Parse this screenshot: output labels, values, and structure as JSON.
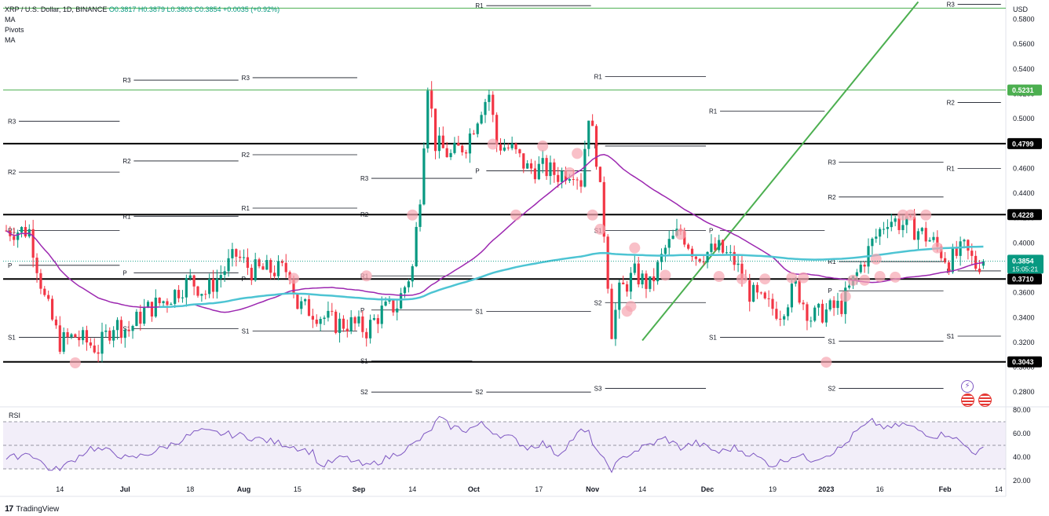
{
  "header": {
    "symbol": "XRP / U.S. Dollar, 1D, BINANCE",
    "ohlc": "O0.3817  H0.3879  L0.3803  C0.3854  +0.0035 (+0.92%)",
    "indicators": [
      "MA",
      "Pivots",
      "MA"
    ]
  },
  "currency": "USD",
  "rsi_label": "RSI",
  "logo_text": "TradingView",
  "colors": {
    "up": "#089981",
    "down": "#f23645",
    "ma_fast": "#9c27b0",
    "ma_slow": "#4dc4d3",
    "trend": "#4caf50",
    "rsi": "#7e57c2",
    "marker": "#f7a5b1"
  },
  "icons": [
    "lightning-icon",
    "flag-us-icon",
    "flag-us-icon"
  ],
  "chart_data": {
    "type": "candlestick",
    "price_axis": {
      "ylim": [
        0.27,
        0.593
      ],
      "ticks": [
        0.28,
        0.3,
        0.32,
        0.34,
        0.36,
        0.38,
        0.4,
        0.42,
        0.44,
        0.46,
        0.48,
        0.5,
        0.52,
        0.54,
        0.56,
        0.58
      ],
      "tick_labels": [
        "0.2800",
        "0.3000",
        "0.3200",
        "0.3400",
        "0.3600",
        "0.3800",
        "0.4000",
        "0.4200",
        "0.4400",
        "0.4600",
        "0.4800",
        "0.5000",
        "0.5200",
        "0.5400",
        "0.5600",
        "0.5800"
      ]
    },
    "time_axis": {
      "labels": [
        "14",
        "Jul",
        "18",
        "Aug",
        "15",
        "Sep",
        "14",
        "Oct",
        "17",
        "Nov",
        "14",
        "Dec",
        "19",
        "2023",
        "16",
        "Feb",
        "14"
      ],
      "label_days": [
        14,
        31,
        48,
        62,
        76,
        92,
        106,
        122,
        139,
        153,
        166,
        183,
        200,
        214,
        228,
        245,
        259
      ]
    },
    "start_date": "2022-05-31",
    "highlighted_prices": [
      {
        "value": 0.5231,
        "label": "0.5231",
        "color": "#4caf50"
      },
      {
        "value": 0.4799,
        "label": "0.4799",
        "color": "#000000"
      },
      {
        "value": 0.4228,
        "label": "0.4228",
        "color": "#000000"
      },
      {
        "value": 0.371,
        "label": "0.3710",
        "color": "#000000"
      },
      {
        "value": 0.3043,
        "label": "0.3043",
        "color": "#000000"
      }
    ],
    "current_price": {
      "value": 0.3854,
      "label": "0.3854",
      "countdown": "15:05:21"
    },
    "horizontal_levels": [
      {
        "value": 0.371,
        "kind": "support"
      },
      {
        "value": 0.3043,
        "kind": "support"
      },
      {
        "value": 0.4228,
        "kind": "resistance"
      },
      {
        "value": 0.4799,
        "kind": "resistance"
      },
      {
        "value": 0.5231,
        "kind": "resistance"
      },
      {
        "value": 0.589,
        "kind": "resistance"
      }
    ],
    "trend_line": {
      "from": {
        "day": 166,
        "price": 0.3215
      },
      "to": {
        "day": 238,
        "price": 0.594
      }
    },
    "pivot_sets": [
      {
        "d0": 0,
        "d1": 30,
        "levels": {
          "R3": 0.498,
          "R2": 0.457,
          "R1": 0.41,
          "P": 0.382,
          "S1": 0.324
        }
      },
      {
        "d0": 30,
        "d1": 61,
        "levels": {
          "R3": 0.531,
          "R2": 0.466,
          "R1": 0.4215,
          "P": 0.376,
          "S1": 0.331
        }
      },
      {
        "d0": 61,
        "d1": 92,
        "levels": {
          "R3": 0.533,
          "R2": 0.471,
          "R1": 0.428,
          "P": 0.371,
          "S1": 0.329
        }
      },
      {
        "d0": 92,
        "d1": 122,
        "levels": {
          "R3": 0.452,
          "R2": 0.423,
          "R1": 0.3735,
          "P": 0.346,
          "S1": 0.305,
          "S2": 0.28
        }
      },
      {
        "d0": 122,
        "d1": 153,
        "levels": {
          "R1": 0.591,
          "P": 0.458,
          "S1": 0.345,
          "S2": 0.28
        }
      },
      {
        "d0": 153,
        "d1": 183,
        "levels": {
          "R1": 0.534,
          "P": 0.478,
          "S1": 0.41,
          "S2": 0.352,
          "S3": 0.283
        }
      },
      {
        "d0": 183,
        "d1": 214,
        "levels": {
          "R1": 0.506,
          "P": 0.41,
          "S1": 0.324
        }
      },
      {
        "d0": 214,
        "d1": 245,
        "levels": {
          "R3": 0.465,
          "R2": 0.437,
          "R1": 0.385,
          "P": 0.3615,
          "S1": 0.321,
          "S2": 0.283
        }
      },
      {
        "d0": 245,
        "d1": 260,
        "levels": {
          "R3": 0.592,
          "R2": 0.513,
          "R1": 0.46,
          "P": 0.3775,
          "S1": 0.325
        }
      }
    ],
    "rsi": {
      "ylim": [
        20,
        80
      ],
      "ticks": [
        20,
        40,
        60,
        80
      ],
      "tick_labels": [
        "20.00",
        "40.00",
        "60.00",
        "80.00"
      ],
      "band": [
        30,
        70
      ],
      "mid": 50,
      "keypoints": [
        [
          0,
          38
        ],
        [
          6,
          44
        ],
        [
          12,
          28
        ],
        [
          16,
          34
        ],
        [
          22,
          48
        ],
        [
          28,
          44
        ],
        [
          32,
          38
        ],
        [
          38,
          44
        ],
        [
          44,
          52
        ],
        [
          50,
          62
        ],
        [
          56,
          60
        ],
        [
          62,
          58
        ],
        [
          68,
          54
        ],
        [
          74,
          50
        ],
        [
          80,
          44
        ],
        [
          82,
          32
        ],
        [
          88,
          40
        ],
        [
          94,
          32
        ],
        [
          100,
          40
        ],
        [
          106,
          50
        ],
        [
          110,
          60
        ],
        [
          113,
          73
        ],
        [
          116,
          66
        ],
        [
          120,
          63
        ],
        [
          124,
          68
        ],
        [
          128,
          60
        ],
        [
          132,
          56
        ],
        [
          136,
          48
        ],
        [
          140,
          52
        ],
        [
          144,
          42
        ],
        [
          148,
          56
        ],
        [
          150,
          62
        ],
        [
          152,
          60
        ],
        [
          155,
          40
        ],
        [
          158,
          30
        ],
        [
          162,
          42
        ],
        [
          166,
          48
        ],
        [
          172,
          56
        ],
        [
          176,
          48
        ],
        [
          180,
          52
        ],
        [
          186,
          44
        ],
        [
          190,
          48
        ],
        [
          196,
          40
        ],
        [
          200,
          33
        ],
        [
          206,
          42
        ],
        [
          210,
          38
        ],
        [
          214,
          42
        ],
        [
          218,
          48
        ],
        [
          222,
          62
        ],
        [
          226,
          70
        ],
        [
          230,
          64
        ],
        [
          234,
          68
        ],
        [
          238,
          63
        ],
        [
          242,
          58
        ],
        [
          246,
          60
        ],
        [
          250,
          50
        ],
        [
          253,
          44
        ],
        [
          255,
          46
        ]
      ]
    },
    "candles_summary": {
      "trajectory": [
        [
          0,
          0.41
        ],
        [
          6,
          0.41
        ],
        [
          10,
          0.355
        ],
        [
          14,
          0.32
        ],
        [
          18,
          0.325
        ],
        [
          24,
          0.315
        ],
        [
          28,
          0.335
        ],
        [
          32,
          0.33
        ],
        [
          36,
          0.345
        ],
        [
          42,
          0.355
        ],
        [
          48,
          0.37
        ],
        [
          52,
          0.36
        ],
        [
          56,
          0.375
        ],
        [
          60,
          0.39
        ],
        [
          64,
          0.378
        ],
        [
          70,
          0.378
        ],
        [
          74,
          0.378
        ],
        [
          76,
          0.35
        ],
        [
          80,
          0.345
        ],
        [
          86,
          0.335
        ],
        [
          90,
          0.335
        ],
        [
          94,
          0.33
        ],
        [
          98,
          0.345
        ],
        [
          102,
          0.35
        ],
        [
          106,
          0.38
        ],
        [
          108,
          0.44
        ],
        [
          110,
          0.53
        ],
        [
          112,
          0.48
        ],
        [
          116,
          0.47
        ],
        [
          120,
          0.48
        ],
        [
          124,
          0.51
        ],
        [
          126,
          0.52
        ],
        [
          128,
          0.48
        ],
        [
          132,
          0.475
        ],
        [
          136,
          0.46
        ],
        [
          140,
          0.46
        ],
        [
          144,
          0.455
        ],
        [
          148,
          0.46
        ],
        [
          150,
          0.45
        ],
        [
          152,
          0.505
        ],
        [
          154,
          0.47
        ],
        [
          156,
          0.41
        ],
        [
          158,
          0.33
        ],
        [
          160,
          0.36
        ],
        [
          164,
          0.375
        ],
        [
          168,
          0.365
        ],
        [
          172,
          0.395
        ],
        [
          176,
          0.41
        ],
        [
          180,
          0.39
        ],
        [
          186,
          0.395
        ],
        [
          190,
          0.385
        ],
        [
          194,
          0.36
        ],
        [
          198,
          0.35
        ],
        [
          202,
          0.345
        ],
        [
          206,
          0.365
        ],
        [
          210,
          0.34
        ],
        [
          214,
          0.345
        ],
        [
          218,
          0.35
        ],
        [
          222,
          0.375
        ],
        [
          226,
          0.4
        ],
        [
          230,
          0.42
        ],
        [
          234,
          0.415
        ],
        [
          238,
          0.41
        ],
        [
          242,
          0.4
        ],
        [
          246,
          0.385
        ],
        [
          250,
          0.395
        ],
        [
          253,
          0.382
        ],
        [
          255,
          0.3854
        ]
      ]
    },
    "markers": [
      [
        18,
        0.3035
      ],
      [
        75,
        0.3715
      ],
      [
        94,
        0.3735
      ],
      [
        106,
        0.4225
      ],
      [
        127,
        0.4795
      ],
      [
        133,
        0.4225
      ],
      [
        140,
        0.478
      ],
      [
        147,
        0.4565
      ],
      [
        149,
        0.472
      ],
      [
        153,
        0.4225
      ],
      [
        155,
        0.411
      ],
      [
        162,
        0.345
      ],
      [
        163,
        0.349
      ],
      [
        164,
        0.396
      ],
      [
        172,
        0.374
      ],
      [
        176,
        0.407
      ],
      [
        186,
        0.373
      ],
      [
        192,
        0.371
      ],
      [
        198,
        0.371
      ],
      [
        205,
        0.372
      ],
      [
        208,
        0.372
      ],
      [
        214,
        0.304
      ],
      [
        219,
        0.357
      ],
      [
        221,
        0.37
      ],
      [
        224,
        0.37
      ],
      [
        227,
        0.387
      ],
      [
        228,
        0.373
      ],
      [
        232,
        0.3725
      ],
      [
        234,
        0.4225
      ],
      [
        236,
        0.4225
      ],
      [
        240,
        0.4225
      ],
      [
        243,
        0.396
      ]
    ]
  }
}
